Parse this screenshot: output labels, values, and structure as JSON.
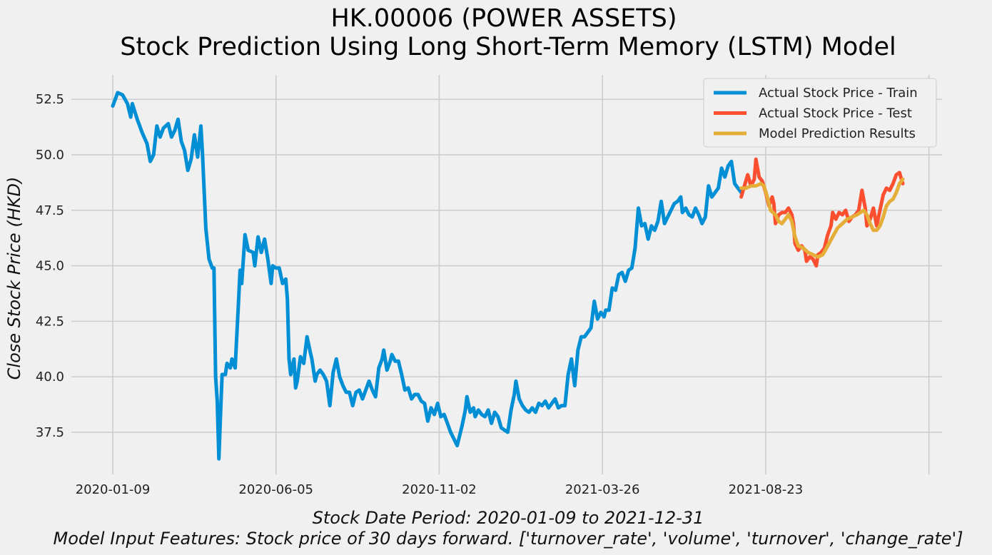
{
  "chart_data": {
    "type": "line",
    "title": "HK.00006 (POWER ASSETS)",
    "subtitle": "Stock Prediction Using Long Short-Term Memory (LSTM) Model",
    "ylabel": "Close Stock Price (HKD)",
    "xlabel_line1": "Stock Date Period:  2020-01-09 to 2021-12-31",
    "xlabel_line2": "Model Input Features:  Stock price of 30 days forward. ['turnover_rate', 'volume', 'turnover', 'change_rate']",
    "x_ticks": [
      "2020-01-09",
      "2020-06-05",
      "2020-11-02",
      "2021-03-26",
      "2021-08-23"
    ],
    "y_ticks": [
      "37.5",
      "40.0",
      "42.5",
      "45.0",
      "47.5",
      "50.0",
      "52.5"
    ],
    "ylim": [
      35.6,
      53.6
    ],
    "grid": true,
    "legend_position": "top-right",
    "colors": {
      "train": "#008fd5",
      "test": "#fc4f30",
      "prediction": "#e5ae38"
    },
    "series": [
      {
        "name": "Actual Stock Price - Train",
        "key": "train",
        "points": [
          [
            0,
            52.2
          ],
          [
            3,
            52.8
          ],
          [
            6,
            52.7
          ],
          [
            9,
            52.3
          ],
          [
            11,
            51.7
          ],
          [
            12,
            52.3
          ],
          [
            15,
            51.6
          ],
          [
            18,
            51.0
          ],
          [
            21,
            50.5
          ],
          [
            23,
            49.7
          ],
          [
            25,
            50.0
          ],
          [
            27,
            51.3
          ],
          [
            29,
            50.8
          ],
          [
            31,
            51.2
          ],
          [
            34,
            51.4
          ],
          [
            36,
            50.8
          ],
          [
            38,
            51.1
          ],
          [
            40,
            51.6
          ],
          [
            42,
            50.6
          ],
          [
            44,
            50.2
          ],
          [
            46,
            49.3
          ],
          [
            48,
            49.8
          ],
          [
            50,
            50.9
          ],
          [
            52,
            49.9
          ],
          [
            54,
            51.3
          ],
          [
            55,
            50.0
          ],
          [
            57,
            46.7
          ],
          [
            59,
            45.3
          ],
          [
            61,
            44.9
          ],
          [
            62,
            44.9
          ],
          [
            63,
            40.0
          ],
          [
            64,
            38.9
          ],
          [
            65,
            36.3
          ],
          [
            66,
            38.3
          ],
          [
            67,
            40.1
          ],
          [
            69,
            40.1
          ],
          [
            70,
            40.6
          ],
          [
            72,
            40.4
          ],
          [
            73,
            40.8
          ],
          [
            75,
            40.4
          ],
          [
            77,
            43.3
          ],
          [
            78,
            44.8
          ],
          [
            79,
            44.2
          ],
          [
            81,
            46.4
          ],
          [
            83,
            45.7
          ],
          [
            86,
            45.6
          ],
          [
            87,
            45.0
          ],
          [
            89,
            46.3
          ],
          [
            91,
            45.6
          ],
          [
            93,
            46.2
          ],
          [
            95,
            45.3
          ],
          [
            97,
            44.2
          ],
          [
            98,
            45.0
          ],
          [
            100,
            44.9
          ],
          [
            102,
            44.9
          ],
          [
            104,
            44.2
          ],
          [
            106,
            44.4
          ],
          [
            107,
            43.5
          ],
          [
            108,
            40.8
          ],
          [
            109,
            40.1
          ],
          [
            111,
            40.8
          ],
          [
            112,
            39.5
          ],
          [
            113,
            39.8
          ],
          [
            115,
            40.9
          ],
          [
            117,
            40.6
          ],
          [
            119,
            41.8
          ],
          [
            121,
            41.1
          ],
          [
            122,
            40.8
          ],
          [
            124,
            39.8
          ],
          [
            125,
            40.1
          ],
          [
            127,
            40.3
          ],
          [
            129,
            40.1
          ],
          [
            131,
            39.8
          ],
          [
            133,
            38.7
          ],
          [
            135,
            40.2
          ],
          [
            137,
            40.8
          ],
          [
            139,
            40.0
          ],
          [
            141,
            39.6
          ],
          [
            143,
            39.3
          ],
          [
            145,
            39.3
          ],
          [
            147,
            38.7
          ],
          [
            149,
            39.3
          ],
          [
            151,
            39.4
          ],
          [
            153,
            39.0
          ],
          [
            155,
            39.4
          ],
          [
            157,
            39.8
          ],
          [
            159,
            39.4
          ],
          [
            161,
            39.1
          ],
          [
            163,
            40.4
          ],
          [
            165,
            40.8
          ],
          [
            166,
            41.2
          ],
          [
            168,
            40.3
          ],
          [
            170,
            40.7
          ],
          [
            171,
            41.0
          ],
          [
            173,
            40.7
          ],
          [
            175,
            40.7
          ],
          [
            177,
            40.1
          ],
          [
            179,
            39.4
          ],
          [
            181,
            39.5
          ],
          [
            183,
            39.0
          ],
          [
            185,
            39.2
          ],
          [
            187,
            39.2
          ],
          [
            189,
            38.9
          ],
          [
            191,
            38.8
          ],
          [
            193,
            38.0
          ],
          [
            195,
            38.6
          ],
          [
            197,
            38.3
          ],
          [
            199,
            38.8
          ],
          [
            201,
            38.2
          ],
          [
            203,
            38.3
          ],
          [
            205,
            37.9
          ],
          [
            207,
            37.5
          ],
          [
            209,
            37.2
          ],
          [
            211,
            36.9
          ],
          [
            212,
            37.2
          ],
          [
            214,
            37.8
          ],
          [
            216,
            38.5
          ],
          [
            217,
            39.1
          ],
          [
            219,
            38.4
          ],
          [
            221,
            38.6
          ],
          [
            222,
            38.2
          ],
          [
            224,
            38.5
          ],
          [
            226,
            38.3
          ],
          [
            228,
            38.2
          ],
          [
            230,
            38.5
          ],
          [
            232,
            37.9
          ],
          [
            234,
            38.4
          ],
          [
            236,
            38.2
          ],
          [
            238,
            37.7
          ],
          [
            240,
            37.6
          ],
          [
            242,
            37.5
          ],
          [
            244,
            38.5
          ],
          [
            246,
            39.2
          ],
          [
            247,
            39.8
          ],
          [
            249,
            39.0
          ],
          [
            251,
            38.7
          ],
          [
            253,
            38.5
          ],
          [
            255,
            38.4
          ],
          [
            257,
            38.6
          ],
          [
            259,
            38.4
          ],
          [
            261,
            38.8
          ],
          [
            263,
            38.7
          ],
          [
            265,
            38.9
          ],
          [
            267,
            38.6
          ],
          [
            269,
            38.8
          ],
          [
            271,
            39.0
          ],
          [
            273,
            38.6
          ],
          [
            275,
            38.7
          ],
          [
            277,
            38.7
          ],
          [
            279,
            40.1
          ],
          [
            281,
            40.8
          ],
          [
            283,
            39.6
          ],
          [
            285,
            41.2
          ],
          [
            287,
            41.8
          ],
          [
            289,
            41.8
          ],
          [
            291,
            42.0
          ],
          [
            293,
            42.2
          ],
          [
            295,
            43.4
          ],
          [
            297,
            42.6
          ],
          [
            299,
            42.9
          ],
          [
            301,
            42.7
          ],
          [
            302,
            43.0
          ],
          [
            304,
            43.0
          ],
          [
            306,
            44.0
          ],
          [
            308,
            43.9
          ],
          [
            310,
            44.6
          ],
          [
            312,
            44.7
          ],
          [
            314,
            44.3
          ],
          [
            316,
            44.8
          ],
          [
            318,
            44.9
          ],
          [
            320,
            45.8
          ],
          [
            322,
            47.6
          ],
          [
            324,
            46.8
          ],
          [
            326,
            46.9
          ],
          [
            328,
            46.2
          ],
          [
            330,
            46.8
          ],
          [
            332,
            46.6
          ],
          [
            334,
            47.0
          ],
          [
            336,
            47.9
          ],
          [
            338,
            46.9
          ],
          [
            340,
            47.2
          ],
          [
            342,
            47.5
          ],
          [
            344,
            47.8
          ],
          [
            346,
            47.9
          ],
          [
            348,
            48.1
          ],
          [
            349,
            47.4
          ],
          [
            351,
            47.6
          ],
          [
            353,
            47.3
          ],
          [
            355,
            47.2
          ],
          [
            357,
            47.6
          ],
          [
            359,
            47.3
          ],
          [
            361,
            46.9
          ],
          [
            363,
            47.2
          ],
          [
            365,
            48.6
          ],
          [
            367,
            48.1
          ],
          [
            369,
            48.3
          ],
          [
            371,
            48.5
          ],
          [
            373,
            49.4
          ],
          [
            375,
            49.0
          ],
          [
            377,
            49.5
          ],
          [
            379,
            49.7
          ],
          [
            381,
            48.7
          ],
          [
            383,
            48.5
          ],
          [
            385,
            48.3
          ]
        ]
      },
      {
        "name": "Actual Stock Price - Test",
        "key": "test",
        "points": [
          [
            385,
            48.1
          ],
          [
            387,
            48.6
          ],
          [
            389,
            49.1
          ],
          [
            391,
            48.6
          ],
          [
            393,
            48.9
          ],
          [
            394,
            49.8
          ],
          [
            396,
            49.0
          ],
          [
            398,
            48.8
          ],
          [
            400,
            48.3
          ],
          [
            402,
            47.7
          ],
          [
            404,
            48.1
          ],
          [
            405,
            47.8
          ],
          [
            406,
            46.9
          ],
          [
            408,
            47.3
          ],
          [
            410,
            47.4
          ],
          [
            412,
            47.4
          ],
          [
            414,
            47.6
          ],
          [
            416,
            47.3
          ],
          [
            417,
            46.9
          ],
          [
            418,
            46.0
          ],
          [
            420,
            45.7
          ],
          [
            422,
            45.9
          ],
          [
            424,
            45.7
          ],
          [
            425,
            45.2
          ],
          [
            427,
            45.4
          ],
          [
            429,
            45.3
          ],
          [
            431,
            45.0
          ],
          [
            432,
            45.5
          ],
          [
            434,
            45.6
          ],
          [
            436,
            45.8
          ],
          [
            438,
            46.4
          ],
          [
            440,
            46.8
          ],
          [
            441,
            47.4
          ],
          [
            443,
            47.1
          ],
          [
            445,
            47.4
          ],
          [
            447,
            47.3
          ],
          [
            449,
            47.5
          ],
          [
            451,
            47.0
          ],
          [
            453,
            47.2
          ],
          [
            455,
            47.3
          ],
          [
            457,
            47.5
          ],
          [
            459,
            48.4
          ],
          [
            461,
            47.6
          ],
          [
            462,
            46.8
          ],
          [
            464,
            47.1
          ],
          [
            466,
            47.6
          ],
          [
            468,
            46.8
          ],
          [
            470,
            47.5
          ],
          [
            472,
            48.2
          ],
          [
            474,
            48.5
          ],
          [
            476,
            48.4
          ],
          [
            478,
            48.7
          ],
          [
            480,
            49.1
          ],
          [
            482,
            49.2
          ],
          [
            484,
            48.7
          ]
        ]
      },
      {
        "name": "Model Prediction Results",
        "key": "prediction",
        "points": [
          [
            385,
            48.5
          ],
          [
            388,
            48.5
          ],
          [
            391,
            48.6
          ],
          [
            394,
            48.6
          ],
          [
            397,
            48.7
          ],
          [
            399,
            48.6
          ],
          [
            401,
            48.1
          ],
          [
            403,
            47.5
          ],
          [
            406,
            47.3
          ],
          [
            408,
            47.0
          ],
          [
            410,
            46.9
          ],
          [
            412,
            47.1
          ],
          [
            414,
            47.3
          ],
          [
            416,
            47.0
          ],
          [
            418,
            46.3
          ],
          [
            420,
            45.9
          ],
          [
            423,
            45.8
          ],
          [
            426,
            45.6
          ],
          [
            429,
            45.5
          ],
          [
            432,
            45.4
          ],
          [
            435,
            45.5
          ],
          [
            438,
            45.9
          ],
          [
            441,
            46.3
          ],
          [
            444,
            46.7
          ],
          [
            447,
            46.9
          ],
          [
            450,
            47.1
          ],
          [
            453,
            47.2
          ],
          [
            456,
            47.3
          ],
          [
            458,
            47.4
          ],
          [
            460,
            47.5
          ],
          [
            462,
            47.3
          ],
          [
            464,
            46.9
          ],
          [
            466,
            46.6
          ],
          [
            468,
            46.6
          ],
          [
            470,
            46.8
          ],
          [
            472,
            47.2
          ],
          [
            474,
            47.7
          ],
          [
            476,
            47.9
          ],
          [
            478,
            48.0
          ],
          [
            480,
            48.3
          ],
          [
            482,
            48.7
          ],
          [
            484,
            48.9
          ]
        ]
      }
    ]
  }
}
